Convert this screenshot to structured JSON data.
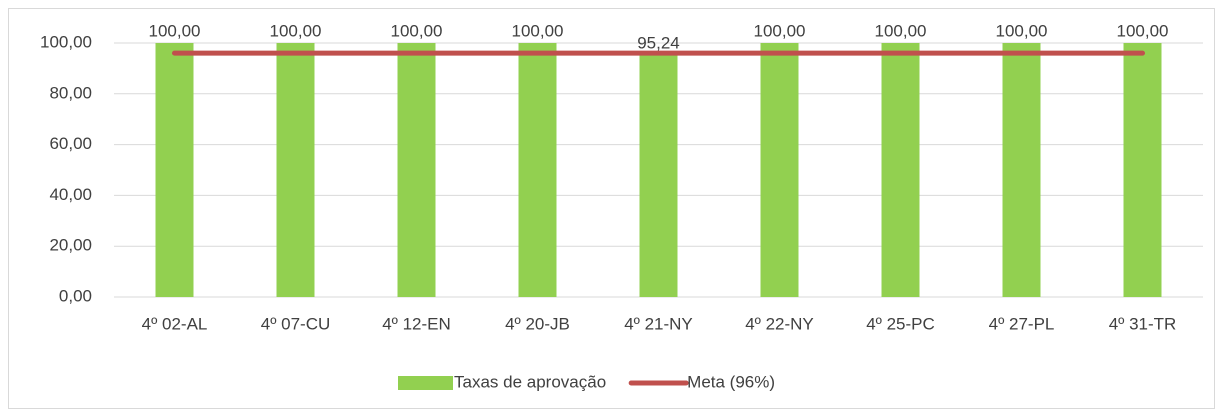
{
  "chart_data": {
    "type": "bar",
    "categories": [
      "4º 02-AL",
      "4º 07-CU",
      "4º 12-EN",
      "4º 20-JB",
      "4º 21-NY",
      "4º 22-NY",
      "4º 25-PC",
      "4º 27-PL",
      "4º 31-TR"
    ],
    "series": [
      {
        "name": "Taxas de aprovação",
        "type": "bar",
        "color": "#92d050",
        "values": [
          100,
          100,
          100,
          100,
          95.24,
          100,
          100,
          100,
          100
        ],
        "value_labels": [
          "100,00",
          "100,00",
          "100,00",
          "100,00",
          "95,24",
          "100,00",
          "100,00",
          "100,00",
          "100,00"
        ]
      },
      {
        "name": "Meta (96%)",
        "type": "line",
        "color": "#c0504d",
        "values": [
          96,
          96,
          96,
          96,
          96,
          96,
          96,
          96,
          96
        ]
      }
    ],
    "ylim": [
      0,
      100
    ],
    "yticks": [
      {
        "value": 0,
        "label": "0,00"
      },
      {
        "value": 20,
        "label": "20,00"
      },
      {
        "value": 40,
        "label": "40,00"
      },
      {
        "value": 60,
        "label": "60,00"
      },
      {
        "value": 80,
        "label": "80,00"
      },
      {
        "value": 100,
        "label": "100,00"
      }
    ],
    "grid": true,
    "legend": "bottom"
  }
}
